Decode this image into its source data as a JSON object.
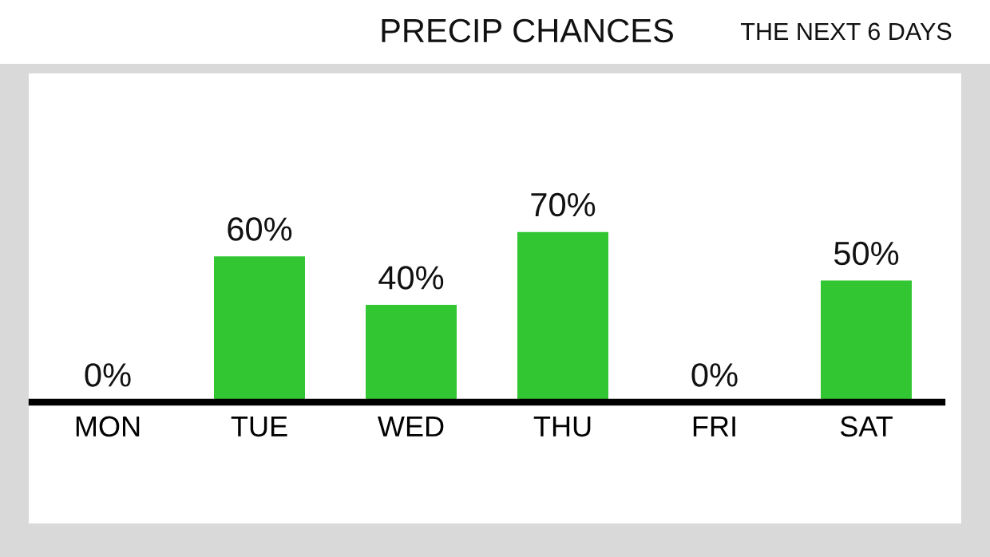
{
  "chart_data": {
    "type": "bar",
    "title": "PRECIP CHANCES",
    "subtitle": "THE NEXT 6 DAYS",
    "categories": [
      "MON",
      "TUE",
      "WED",
      "THU",
      "FRI",
      "SAT"
    ],
    "values": [
      0,
      60,
      40,
      70,
      0,
      50
    ],
    "value_labels": [
      "0%",
      "60%",
      "40%",
      "70%",
      "0%",
      "50%"
    ],
    "color": "#33c633"
  }
}
